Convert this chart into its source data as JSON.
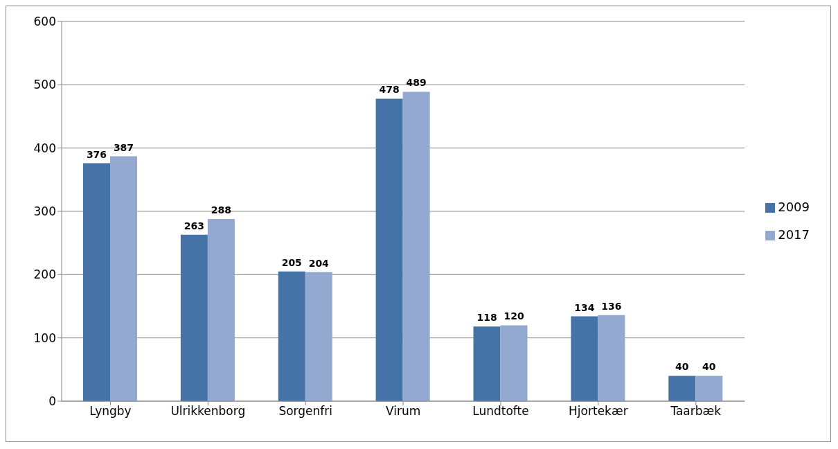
{
  "chart_data": {
    "type": "bar",
    "categories": [
      "Lyngby",
      "Ulrikkenborg",
      "Sorgenfri",
      "Virum",
      "Lundtofte",
      "Hjortekær",
      "Taarbæk"
    ],
    "series": [
      {
        "name": "2009",
        "color": "#4572a7",
        "values": [
          376,
          263,
          205,
          478,
          118,
          134,
          40
        ]
      },
      {
        "name": "2017",
        "color": "#93a9cf",
        "values": [
          387,
          288,
          204,
          489,
          120,
          136,
          40
        ]
      }
    ],
    "ylim": [
      0,
      600
    ],
    "yticks": [
      0,
      100,
      200,
      300,
      400,
      500,
      600
    ],
    "grid": "y",
    "legend": "right",
    "data_labels": true
  }
}
